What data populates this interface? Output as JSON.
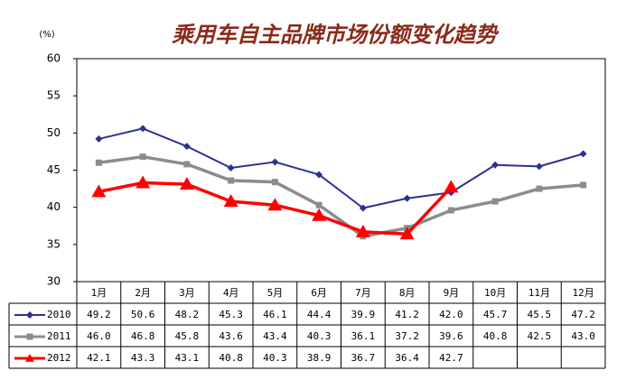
{
  "chart_data": {
    "type": "line",
    "title": "乘用车自主品牌市场份额变化趋势",
    "y_label": "(%)",
    "categories": [
      "1月",
      "2月",
      "3月",
      "4月",
      "5月",
      "6月",
      "7月",
      "8月",
      "9月",
      "10月",
      "11月",
      "12月"
    ],
    "ylim": [
      30,
      60
    ],
    "yticks": [
      30,
      35,
      40,
      45,
      50,
      55,
      60
    ],
    "grid": false,
    "series": [
      {
        "name": "2010",
        "color": "#2e3192",
        "marker": "diamond",
        "values": [
          49.2,
          50.6,
          48.2,
          45.3,
          46.1,
          44.4,
          39.9,
          41.2,
          42.0,
          45.7,
          45.5,
          47.2
        ],
        "value_labels": [
          "49.2",
          "50.6",
          "48.2",
          "45.3",
          "46.1",
          "44.4",
          "39.9",
          "41.2",
          "42.0",
          "45.7",
          "45.5",
          "47.2"
        ]
      },
      {
        "name": "2011",
        "color": "#8c8c8c",
        "marker": "square",
        "values": [
          46.0,
          46.8,
          45.8,
          43.6,
          43.4,
          40.3,
          36.1,
          37.2,
          39.6,
          40.8,
          42.5,
          43.0
        ],
        "value_labels": [
          "46.0",
          "46.8",
          "45.8",
          "43.6",
          "43.4",
          "40.3",
          "36.1",
          "37.2",
          "39.6",
          "40.8",
          "42.5",
          "43.0"
        ]
      },
      {
        "name": "2012",
        "color": "#ff0000",
        "marker": "triangle",
        "values": [
          42.1,
          43.3,
          43.1,
          40.8,
          40.3,
          38.9,
          36.7,
          36.4,
          42.7,
          null,
          null,
          null
        ],
        "value_labels": [
          "42.1",
          "43.3",
          "43.1",
          "40.8",
          "40.3",
          "38.9",
          "36.7",
          "36.4",
          "42.7",
          null,
          null,
          null
        ]
      }
    ]
  }
}
